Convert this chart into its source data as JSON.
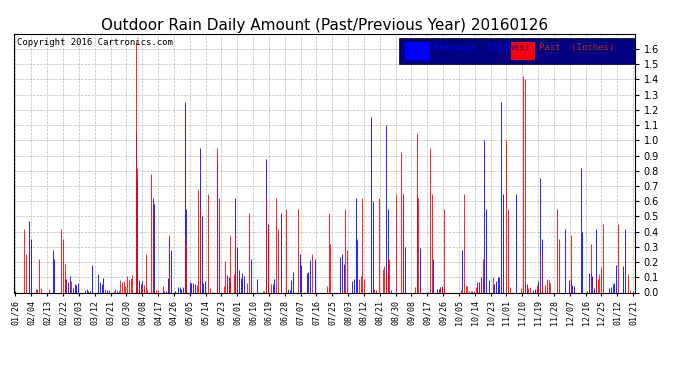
{
  "title": "Outdoor Rain Daily Amount (Past/Previous Year) 20160126",
  "copyright_text": "Copyright 2016 Cartronics.com",
  "legend_labels": [
    "Previous  (Inches)",
    "Past  (Inches)"
  ],
  "legend_colors": [
    "#0000ff",
    "#ff0000"
  ],
  "ylim": [
    0.0,
    1.7
  ],
  "yticks": [
    0.0,
    0.1,
    0.2,
    0.3,
    0.4,
    0.5,
    0.6,
    0.7,
    0.8,
    0.9,
    1.0,
    1.1,
    1.2,
    1.3,
    1.4,
    1.5,
    1.6
  ],
  "x_labels": [
    "01/26",
    "02/04",
    "02/13",
    "02/22",
    "03/03",
    "03/12",
    "03/21",
    "03/30",
    "04/08",
    "04/17",
    "04/26",
    "05/05",
    "05/14",
    "05/23",
    "06/01",
    "06/10",
    "06/19",
    "06/28",
    "07/07",
    "07/16",
    "07/25",
    "08/03",
    "08/12",
    "08/21",
    "08/30",
    "09/08",
    "09/17",
    "09/26",
    "10/05",
    "10/14",
    "10/23",
    "11/01",
    "11/10",
    "11/19",
    "11/28",
    "12/07",
    "12/16",
    "12/25",
    "01/12",
    "01/21"
  ],
  "background_color": "#ffffff",
  "grid_color": "#aaaaaa",
  "title_fontsize": 11,
  "tick_fontsize": 6,
  "blue_color": "#0000ff",
  "red_color": "#ff0000",
  "n_days": 366,
  "legend_bg": "#000080"
}
